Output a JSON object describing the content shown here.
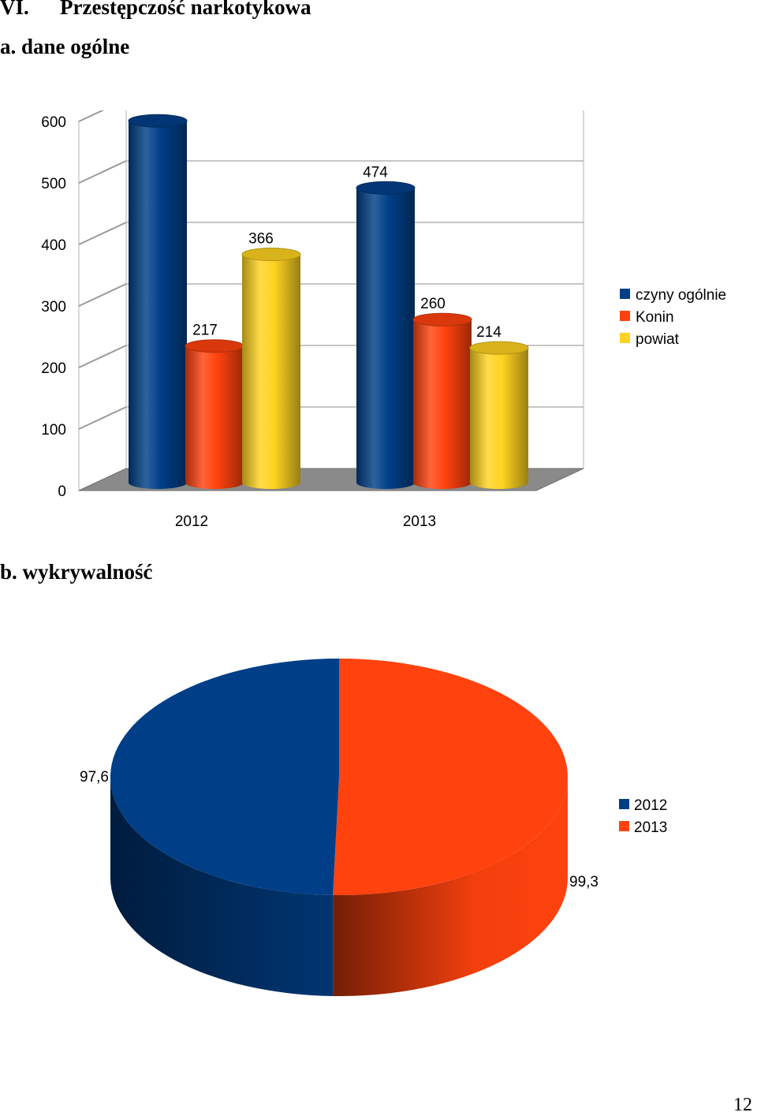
{
  "section": {
    "number": "VI.",
    "title": "Przestępczość narkotykowa",
    "sub_a": "a. dane ogólne",
    "sub_b": "b. wykrywalność"
  },
  "page_number": "12",
  "chart_data": [
    {
      "type": "bar",
      "style": "3d-cylinder",
      "categories": [
        "2012",
        "2013"
      ],
      "series": [
        {
          "name": "czyny ogólnie",
          "values": [
            583,
            474
          ],
          "color": "#003F87"
        },
        {
          "name": "Konin",
          "values": [
            217,
            260
          ],
          "color": "#FF420E"
        },
        {
          "name": "powiat",
          "values": [
            366,
            214
          ],
          "color": "#FFD320"
        }
      ],
      "yticks": [
        "0",
        "100",
        "200",
        "300",
        "400",
        "500",
        "600"
      ],
      "ylim": [
        0,
        600
      ],
      "grid": true,
      "legend": "right"
    },
    {
      "type": "pie",
      "style": "3d",
      "slices": [
        {
          "label": "2012",
          "value": 97.6,
          "display": "97,6",
          "color": "#003F87"
        },
        {
          "label": "2013",
          "value": 99.3,
          "display": "99,3",
          "color": "#FF420E"
        }
      ],
      "legend": "right"
    }
  ]
}
